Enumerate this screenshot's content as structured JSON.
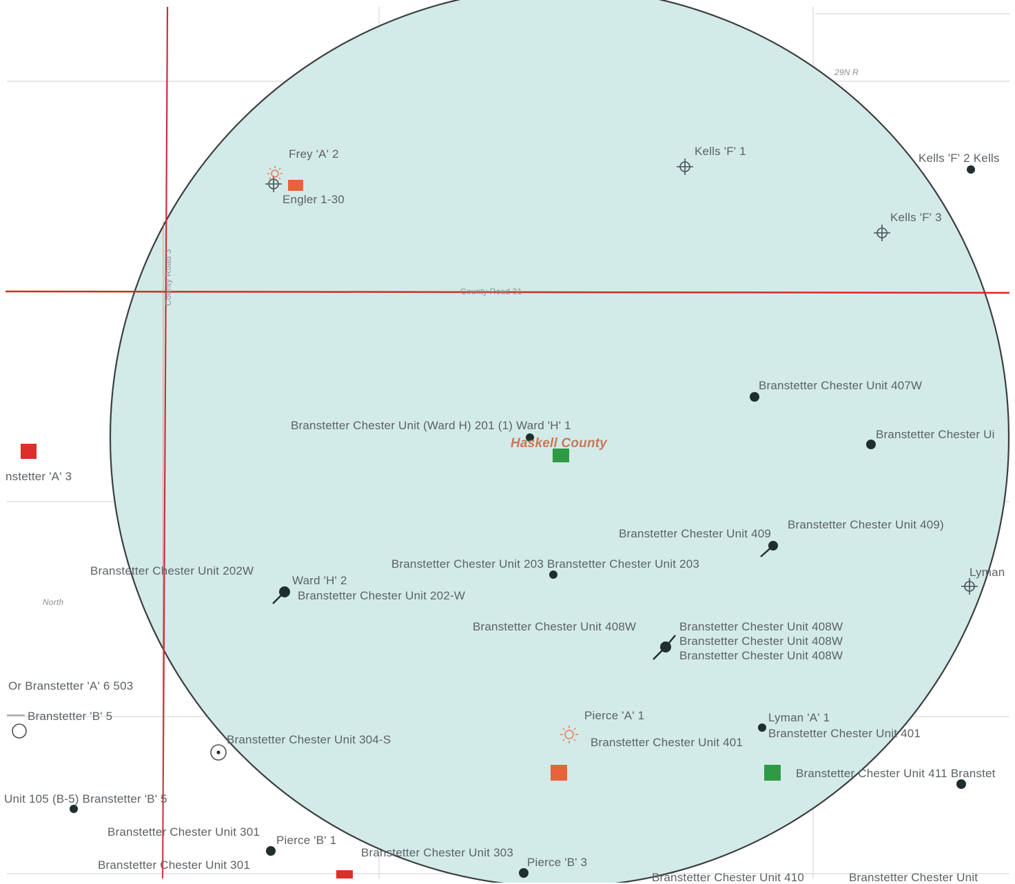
{
  "map": {
    "county_label": "Haskell County",
    "road_h_label": "County Road 31",
    "road_v_label": "County Road 3",
    "corner_label": "29N R",
    "area_label": "North",
    "colors": {
      "buffer_fill": "#cfe9e6",
      "buffer_stroke": "#3a3d40",
      "red_line": "#d42a22",
      "green_marker": "#2e9a44",
      "orange_marker": "#e8623a",
      "red_marker": "#dc2e2a",
      "well_dot": "#1f2e2e"
    }
  },
  "labels": {
    "frey_a2": "Frey 'A' 2",
    "engler": "Engler 1-30",
    "kells_f1": "Kells 'F' 1",
    "kells_f2": "Kells 'F' 2 Kells",
    "kells_f3": "Kells 'F' 3",
    "bcu_407w": "Branstetter Chester Unit 407W",
    "bcu_edge": "Branstetter Chester Ui",
    "bcu_ward201": "Branstetter Chester Unit (Ward H) 201 (1) Ward 'H' 1",
    "branstetter_a3": "nstetter 'A' 3",
    "bcu_409a": "Branstetter Chester Unit 409",
    "bcu_409b": "Branstetter Chester Unit 409)",
    "bcu_203": "Branstetter Chester Unit 203 Branstetter Chester Unit 203",
    "bcu_202w": "Branstetter Chester Unit 202W",
    "ward_h2": "Ward 'H' 2",
    "bcu_202w_b": "Branstetter Chester Unit 202-W",
    "lyman_edge": "Lyman",
    "bcu_408w_a": "Branstetter Chester Unit 408W",
    "bcu_408w_b": "Branstetter Chester Unit 408W",
    "bcu_408w_c": "Branstetter Chester Unit 408W",
    "bcu_408w_d": "Branstetter Chester Unit 408W",
    "or_branstetter": "Or Branstetter 'A' 6 503",
    "branstetter_b5": "Branstetter 'B' 5",
    "pierce_a1": "Pierce 'A' 1",
    "lyman_a1": "Lyman 'A' 1",
    "bcu_401a": "Branstetter Chester Unit 401",
    "bcu_401b": "Branstetter Chester Unit 401",
    "bcu_304s": "Branstetter Chester Unit 304-S",
    "bcu_411": "Branstetter Chester Unit 411 Branstet",
    "unit105": "Unit 105 (B-5) Branstetter 'B' 5",
    "bcu_301a": "Branstetter Chester Unit 301",
    "pierce_b1": "Pierce 'B' 1",
    "bcu_303": "Branstetter Chester Unit 303",
    "bcu_301b": "Branstetter Chester Unit 301",
    "pierce_b3": "Pierce 'B' 3",
    "bcu_410": "Branstetter Chester Unit 410",
    "bcu_bottom_right": "Branstetter Chester Unit"
  }
}
